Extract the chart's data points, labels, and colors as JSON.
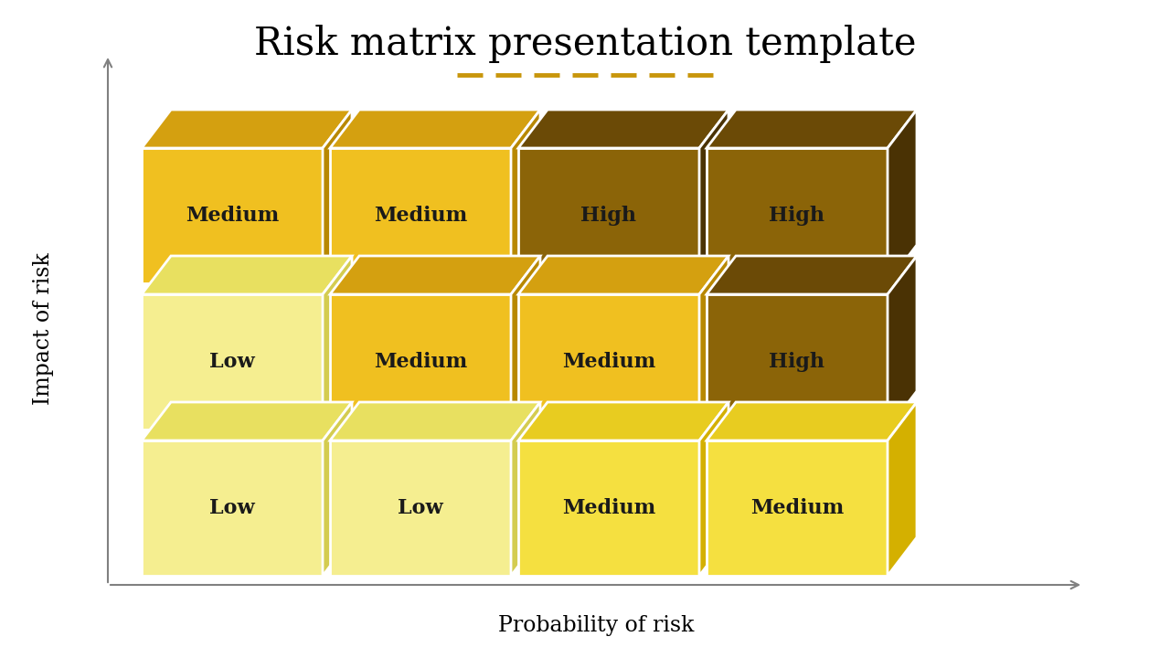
{
  "title": "Risk matrix presentation template",
  "title_fontsize": 30,
  "title_font": "serif",
  "xlabel": "Probability of risk",
  "ylabel": "Impact of risk",
  "axis_label_fontsize": 17,
  "deco_line_color": "#C8960C",
  "grid": [
    [
      "Medium",
      "Medium",
      "High",
      "High"
    ],
    [
      "Low",
      "Medium",
      "Medium",
      "High"
    ],
    [
      "Low",
      "Low",
      "Medium",
      "Medium"
    ]
  ],
  "colors": {
    "Low": {
      "front": "#F5EE90",
      "top": "#E8E060",
      "side": "#D4CC50"
    },
    "Medium_row0": {
      "front": "#F0C020",
      "top": "#D4A010",
      "side": "#B88800"
    },
    "Medium_row1": {
      "front": "#F0C020",
      "top": "#D4A010",
      "side": "#B88800"
    },
    "Medium_row2": {
      "front": "#F5E040",
      "top": "#E8CC20",
      "side": "#D4B000"
    },
    "High": {
      "front": "#8B6408",
      "top": "#6B4A06",
      "side": "#4A3204"
    }
  },
  "text_color": "#1a1a1a",
  "label_fontsize": 16
}
